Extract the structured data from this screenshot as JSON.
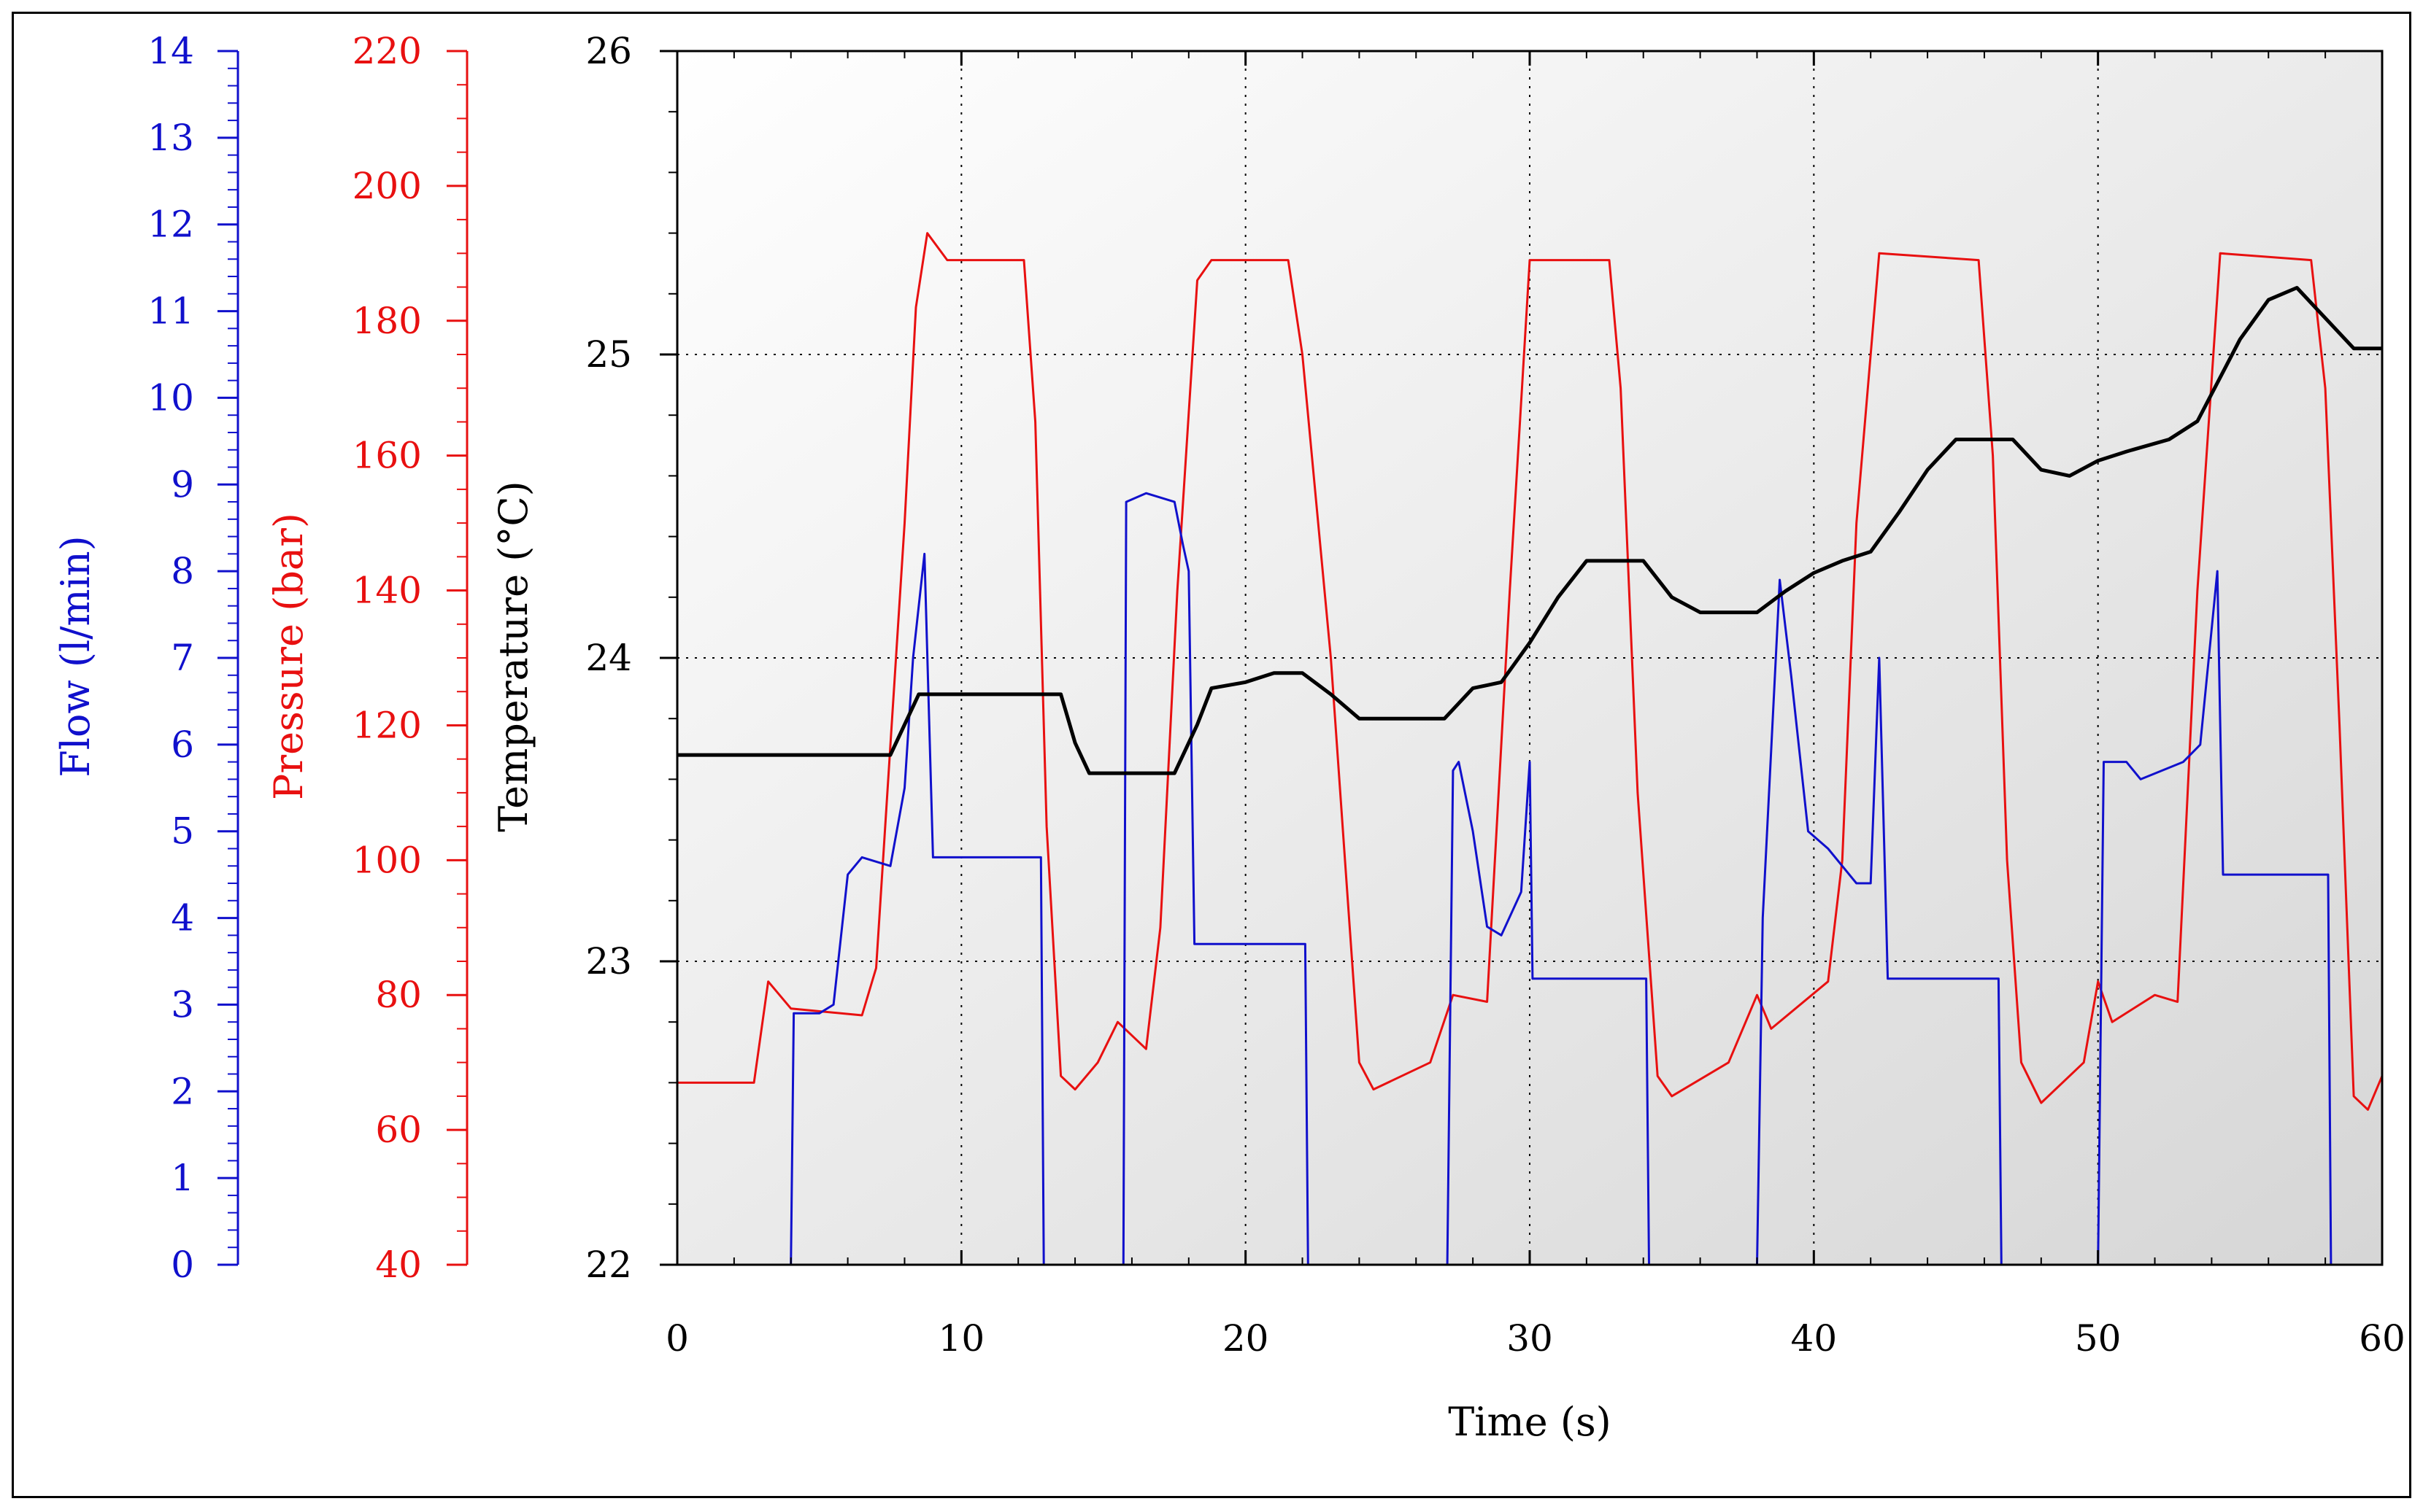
{
  "chart_data": {
    "type": "line",
    "title": "",
    "xlabel": "Time (s)",
    "x_ticks": [
      "0",
      "10",
      "20",
      "30",
      "40",
      "50",
      "60"
    ],
    "xlim": [
      0,
      60
    ],
    "grid": true,
    "axes": {
      "flow": {
        "label": "Flow (l/min)",
        "color": "#1010cc",
        "ylim": [
          0,
          14
        ],
        "ticks": [
          "0",
          "1",
          "2",
          "3",
          "4",
          "5",
          "6",
          "7",
          "8",
          "9",
          "10",
          "11",
          "12",
          "13",
          "14"
        ]
      },
      "pressure": {
        "label": "Pressure (bar)",
        "color": "#e81010",
        "ylim": [
          40,
          220
        ],
        "ticks": [
          "40",
          "60",
          "80",
          "100",
          "120",
          "140",
          "160",
          "180",
          "200",
          "220"
        ]
      },
      "temperature": {
        "label": "Temperature (°C)",
        "color": "#000000",
        "ylim": [
          22,
          26
        ],
        "ticks": [
          "22",
          "23",
          "24",
          "25",
          "26"
        ]
      }
    },
    "series": [
      {
        "name": "Pressure",
        "axis": "pressure",
        "color": "#e81010",
        "points": [
          [
            0,
            67
          ],
          [
            2.7,
            67
          ],
          [
            3.2,
            82
          ],
          [
            4,
            78
          ],
          [
            6.5,
            77
          ],
          [
            7,
            84
          ],
          [
            8,
            150
          ],
          [
            8.4,
            182
          ],
          [
            8.8,
            193
          ],
          [
            9.5,
            189
          ],
          [
            12.2,
            189
          ],
          [
            12.6,
            165
          ],
          [
            13,
            105
          ],
          [
            13.5,
            68
          ],
          [
            14,
            66
          ],
          [
            14.8,
            70
          ],
          [
            15.5,
            76
          ],
          [
            16.5,
            72
          ],
          [
            17,
            90
          ],
          [
            17.6,
            140
          ],
          [
            18.3,
            186
          ],
          [
            18.8,
            189
          ],
          [
            21.5,
            189
          ],
          [
            22,
            175
          ],
          [
            23,
            130
          ],
          [
            23.5,
            100
          ],
          [
            24,
            70
          ],
          [
            24.5,
            66
          ],
          [
            26.5,
            70
          ],
          [
            27.3,
            80
          ],
          [
            28.5,
            79
          ],
          [
            29.3,
            140
          ],
          [
            30,
            189
          ],
          [
            31,
            189
          ],
          [
            32.8,
            189
          ],
          [
            33.2,
            170
          ],
          [
            33.8,
            110
          ],
          [
            34.5,
            68
          ],
          [
            35,
            65
          ],
          [
            37,
            70
          ],
          [
            38,
            80
          ],
          [
            38.5,
            75
          ],
          [
            40.5,
            82
          ],
          [
            41,
            100
          ],
          [
            41.5,
            150
          ],
          [
            42.3,
            190
          ],
          [
            45.8,
            189
          ],
          [
            46.3,
            160
          ],
          [
            46.8,
            100
          ],
          [
            47.3,
            70
          ],
          [
            48,
            64
          ],
          [
            49.5,
            70
          ],
          [
            50,
            82
          ],
          [
            50.5,
            76
          ],
          [
            52,
            80
          ],
          [
            52.8,
            79
          ],
          [
            53.5,
            140
          ],
          [
            54.3,
            190
          ],
          [
            57.5,
            189
          ],
          [
            58,
            170
          ],
          [
            58.5,
            120
          ],
          [
            59,
            65
          ],
          [
            59.5,
            63
          ],
          [
            60,
            68
          ]
        ]
      },
      {
        "name": "Flow",
        "axis": "flow",
        "color": "#1010cc",
        "points": [
          [
            0,
            0
          ],
          [
            4,
            0
          ],
          [
            4.1,
            2.9
          ],
          [
            5,
            2.9
          ],
          [
            5.5,
            3
          ],
          [
            6,
            4.5
          ],
          [
            6.5,
            4.7
          ],
          [
            7.5,
            4.6
          ],
          [
            8,
            5.5
          ],
          [
            8.3,
            7
          ],
          [
            8.7,
            8.2
          ],
          [
            9,
            4.7
          ],
          [
            12.8,
            4.7
          ],
          [
            12.9,
            0
          ],
          [
            15.7,
            0
          ],
          [
            15.8,
            8.8
          ],
          [
            16.5,
            8.9
          ],
          [
            17.5,
            8.8
          ],
          [
            17.8,
            8.3
          ],
          [
            18,
            8
          ],
          [
            18.2,
            3.7
          ],
          [
            22.1,
            3.7
          ],
          [
            22.2,
            0
          ],
          [
            27.1,
            0
          ],
          [
            27.3,
            5.7
          ],
          [
            27.5,
            5.8
          ],
          [
            28,
            5
          ],
          [
            28.5,
            3.9
          ],
          [
            29,
            3.8
          ],
          [
            29.7,
            4.3
          ],
          [
            30,
            5.8
          ],
          [
            30.1,
            3.3
          ],
          [
            34.1,
            3.3
          ],
          [
            34.2,
            0
          ],
          [
            38,
            0
          ],
          [
            38.2,
            4
          ],
          [
            38.8,
            7.9
          ],
          [
            39.2,
            6.8
          ],
          [
            39.8,
            5
          ],
          [
            40.5,
            4.8
          ],
          [
            41.5,
            4.4
          ],
          [
            42,
            4.4
          ],
          [
            42.3,
            7
          ],
          [
            42.6,
            3.3
          ],
          [
            46.5,
            3.3
          ],
          [
            46.6,
            0
          ],
          [
            50,
            0
          ],
          [
            50.2,
            5.8
          ],
          [
            51,
            5.8
          ],
          [
            51.5,
            5.6
          ],
          [
            53,
            5.8
          ],
          [
            53.6,
            6
          ],
          [
            54.2,
            8
          ],
          [
            54.4,
            4.5
          ],
          [
            58.1,
            4.5
          ],
          [
            58.2,
            0
          ],
          [
            60,
            0
          ]
        ]
      },
      {
        "name": "Temperature",
        "axis": "temperature",
        "color": "#000000",
        "points": [
          [
            0,
            23.68
          ],
          [
            7.5,
            23.68
          ],
          [
            8.5,
            23.88
          ],
          [
            13.5,
            23.88
          ],
          [
            14,
            23.72
          ],
          [
            14.5,
            23.62
          ],
          [
            17.5,
            23.62
          ],
          [
            18.3,
            23.78
          ],
          [
            18.8,
            23.9
          ],
          [
            20,
            23.92
          ],
          [
            21,
            23.95
          ],
          [
            22,
            23.95
          ],
          [
            23,
            23.88
          ],
          [
            24,
            23.8
          ],
          [
            27,
            23.8
          ],
          [
            28,
            23.9
          ],
          [
            29,
            23.92
          ],
          [
            30,
            24.05
          ],
          [
            31,
            24.2
          ],
          [
            32,
            24.32
          ],
          [
            34,
            24.32
          ],
          [
            35,
            24.2
          ],
          [
            36,
            24.15
          ],
          [
            38,
            24.15
          ],
          [
            39,
            24.22
          ],
          [
            40,
            24.28
          ],
          [
            41,
            24.32
          ],
          [
            42,
            24.35
          ],
          [
            43,
            24.48
          ],
          [
            44,
            24.62
          ],
          [
            45,
            24.72
          ],
          [
            47,
            24.72
          ],
          [
            48,
            24.62
          ],
          [
            49,
            24.6
          ],
          [
            50,
            24.65
          ],
          [
            51,
            24.68
          ],
          [
            52.5,
            24.72
          ],
          [
            53.5,
            24.78
          ],
          [
            55,
            25.05
          ],
          [
            56,
            25.18
          ],
          [
            57,
            25.22
          ],
          [
            58,
            25.12
          ],
          [
            59,
            25.02
          ],
          [
            60,
            25.02
          ]
        ]
      }
    ]
  }
}
